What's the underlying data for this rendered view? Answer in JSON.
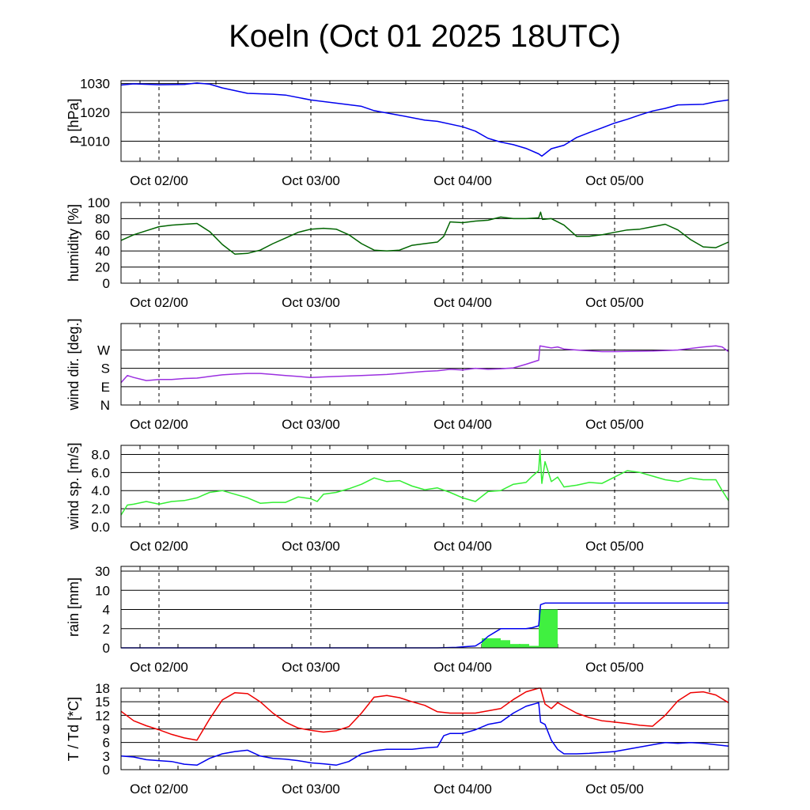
{
  "title": "Koeln (Oct 01 2025 18UTC)",
  "x_axis": {
    "unit": "hours since Oct 01 18UTC",
    "range": [
      0,
      96
    ],
    "ticks": [
      {
        "t": 6,
        "label": "Oct 02/00"
      },
      {
        "t": 30,
        "label": "Oct 03/00"
      },
      {
        "t": 54,
        "label": "Oct 04/00"
      },
      {
        "t": 78,
        "label": "Oct 05/00"
      }
    ]
  },
  "colors": {
    "pressure": "#0000ee",
    "humidity": "#006400",
    "wind_dir": "#9b30e0",
    "wind_speed": "#33ee33",
    "rain_accum": "#0000ee",
    "rain_bars": "#40f040",
    "temperature": "#ee0000",
    "dewpoint": "#0000ee"
  },
  "chart_data": [
    {
      "type": "line",
      "id": "pressure",
      "ylabel": "p [hPa]",
      "ylim": [
        1003,
        1031
      ],
      "yticks": [
        1010,
        1020,
        1030
      ],
      "ytick_labels": [
        "1010",
        "1020",
        "1030"
      ],
      "series": [
        {
          "name": "pressure",
          "x": [
            0,
            2,
            6,
            10,
            12,
            14,
            16,
            20,
            24,
            26,
            30,
            34,
            38,
            40,
            44,
            48,
            50,
            54,
            56,
            58,
            60,
            62,
            64,
            66,
            66.5,
            68,
            70,
            72,
            74,
            76,
            78,
            80,
            82,
            84,
            86,
            88,
            90,
            92,
            94,
            96
          ],
          "values": [
            1029.5,
            1029.9,
            1029.6,
            1029.7,
            1030.2,
            1029.8,
            1028.5,
            1026.6,
            1026.3,
            1026.0,
            1024.3,
            1023.2,
            1022.1,
            1020.6,
            1019.0,
            1017.3,
            1016.9,
            1015.0,
            1013.5,
            1011.0,
            1009.7,
            1008.8,
            1007.5,
            1005.6,
            1004.8,
            1007.4,
            1008.6,
            1011.3,
            1013.0,
            1014.6,
            1016.3,
            1017.6,
            1019.1,
            1020.5,
            1021.4,
            1022.6,
            1022.7,
            1022.8,
            1023.7,
            1024.3
          ]
        }
      ]
    },
    {
      "type": "line",
      "id": "humidity",
      "ylabel": "humidity [%]",
      "ylim": [
        0,
        100
      ],
      "yticks": [
        0,
        20,
        40,
        60,
        80,
        100
      ],
      "ytick_labels": [
        "0",
        "20",
        "40",
        "60",
        "80",
        "100"
      ],
      "series": [
        {
          "name": "relative humidity",
          "x": [
            0,
            2,
            4,
            6,
            8,
            10,
            12,
            14,
            16,
            18,
            20,
            22,
            24,
            26,
            28,
            30,
            32,
            34,
            36,
            38,
            40,
            42,
            44,
            46,
            48,
            50,
            51,
            52,
            54,
            56,
            58,
            60,
            62,
            64,
            66,
            66.3,
            66.6,
            68,
            70,
            72,
            74,
            76,
            78,
            80,
            82,
            84,
            86,
            88,
            90,
            92,
            94,
            96
          ],
          "values": [
            53,
            60,
            65,
            70,
            72,
            73,
            74,
            64,
            48,
            36,
            37,
            41,
            49,
            56,
            63,
            67,
            68,
            67,
            60,
            49,
            41,
            40,
            41,
            47,
            49,
            51,
            58,
            76,
            75,
            77,
            78,
            82,
            80,
            80,
            81,
            88,
            79,
            80,
            72,
            58,
            58,
            60,
            63,
            66,
            67,
            70,
            73,
            66,
            54,
            45,
            44,
            51
          ]
        }
      ]
    },
    {
      "type": "line",
      "id": "wind_direction",
      "ylabel": "wind dir. [deg.]",
      "ylim": [
        0,
        400
      ],
      "yticks": [
        0,
        90,
        180,
        270
      ],
      "ytick_labels": [
        "N",
        "E",
        "S",
        "W"
      ],
      "series": [
        {
          "name": "wind direction",
          "x": [
            0,
            1,
            2,
            4,
            6,
            8,
            10,
            12,
            14,
            16,
            18,
            20,
            22,
            24,
            26,
            28,
            30,
            32,
            34,
            38,
            42,
            44,
            46,
            48,
            50,
            52,
            54,
            56,
            58,
            60,
            62,
            64,
            66,
            66.2,
            68,
            69,
            70,
            72,
            76,
            78,
            80,
            84,
            88,
            92,
            94,
            95,
            96
          ],
          "values": [
            110,
            145,
            135,
            120,
            125,
            125,
            130,
            132,
            140,
            148,
            152,
            155,
            155,
            150,
            145,
            140,
            135,
            138,
            140,
            145,
            150,
            155,
            160,
            165,
            168,
            175,
            172,
            180,
            175,
            178,
            182,
            200,
            220,
            290,
            280,
            285,
            275,
            270,
            262,
            262,
            263,
            265,
            270,
            285,
            290,
            285,
            262
          ]
        }
      ]
    },
    {
      "type": "line",
      "id": "wind_speed",
      "ylabel": "wind sp. [m/s]",
      "ylim": [
        0,
        9
      ],
      "yticks": [
        0,
        2,
        4,
        6,
        8
      ],
      "ytick_labels": [
        "0.0",
        "2.0",
        "4.0",
        "6.0",
        "8.0"
      ],
      "series": [
        {
          "name": "wind speed",
          "x": [
            0,
            1,
            2,
            4,
            6,
            8,
            10,
            12,
            14,
            16,
            18,
            20,
            22,
            24,
            26,
            28,
            30,
            31,
            32,
            34,
            36,
            38,
            40,
            42,
            44,
            46,
            48,
            50,
            52,
            54,
            56,
            58,
            60,
            62,
            64,
            65,
            66,
            66.2,
            66.5,
            67,
            68,
            69,
            70,
            72,
            74,
            76,
            78,
            80,
            82,
            84,
            86,
            88,
            90,
            92,
            94,
            95,
            96
          ],
          "values": [
            1.3,
            2.4,
            2.5,
            2.8,
            2.5,
            2.8,
            2.9,
            3.2,
            3.8,
            4.0,
            3.6,
            3.2,
            2.6,
            2.7,
            2.7,
            3.3,
            3.1,
            2.8,
            3.6,
            3.8,
            4.2,
            4.7,
            5.4,
            5.0,
            5.1,
            4.5,
            4.1,
            4.3,
            3.8,
            3.2,
            2.8,
            3.9,
            4.0,
            4.7,
            4.9,
            5.6,
            6.2,
            8.5,
            4.8,
            7.2,
            5.0,
            5.5,
            4.4,
            4.6,
            4.9,
            4.8,
            5.5,
            6.2,
            6.0,
            5.6,
            5.2,
            5.0,
            5.4,
            5.2,
            5.2,
            4.0,
            2.9
          ]
        }
      ]
    },
    {
      "type": "bar",
      "id": "rain",
      "ylabel": "rain [mm]",
      "ylim": [
        0,
        30
      ],
      "yscale": "nonlinear (tick positions equally spaced)",
      "yticks": [
        0,
        2,
        4,
        10,
        30
      ],
      "ytick_labels": [
        "0",
        "2",
        "4",
        "10",
        "30"
      ],
      "bars": {
        "name": "rain per 3h",
        "x_start": [
          57,
          58.5,
          61.5,
          63,
          63.5,
          66,
          69
        ],
        "values": [
          1.0,
          0.8,
          0.4,
          0.2,
          0.2,
          4.0,
          0.0
        ]
      },
      "series": [
        {
          "name": "accumulated rain",
          "x": [
            0,
            45,
            50,
            53,
            54,
            56,
            57,
            58,
            60,
            62,
            64,
            65,
            66,
            66.3,
            67,
            96
          ],
          "values": [
            0,
            0,
            0,
            0.05,
            0.1,
            0.2,
            0.6,
            1.2,
            2.0,
            2.0,
            2.0,
            2.1,
            2.3,
            5.5,
            6.0,
            6.0
          ]
        }
      ]
    },
    {
      "type": "line",
      "id": "temperature",
      "ylabel": "T / Td [*C]",
      "ylim": [
        0,
        18
      ],
      "yticks": [
        0,
        3,
        6,
        9,
        12,
        15,
        18
      ],
      "ytick_labels": [
        "0",
        "3",
        "6",
        "9",
        "12",
        "15",
        "18"
      ],
      "series": [
        {
          "name": "temperature",
          "x": [
            0,
            2,
            4,
            6,
            8,
            10,
            12,
            14,
            16,
            18,
            20,
            22,
            24,
            26,
            28,
            30,
            32,
            34,
            36,
            38,
            40,
            42,
            44,
            46,
            48,
            50,
            52,
            54,
            56,
            58,
            60,
            62,
            64,
            66,
            66.3,
            67,
            68,
            69,
            70,
            72,
            74,
            76,
            78,
            80,
            82,
            84,
            86,
            88,
            90,
            92,
            94,
            96
          ],
          "values": [
            12.9,
            10.8,
            9.7,
            8.8,
            7.8,
            7.0,
            6.5,
            11.2,
            15.4,
            17.0,
            16.8,
            15.0,
            12.5,
            10.5,
            9.2,
            8.7,
            8.3,
            8.6,
            9.5,
            12.5,
            16.0,
            16.4,
            15.9,
            15.0,
            14.2,
            12.8,
            12.5,
            12.5,
            12.5,
            13.0,
            13.5,
            15.5,
            17.2,
            18.0,
            18.0,
            14.5,
            13.5,
            14.8,
            14.0,
            12.5,
            11.5,
            10.8,
            10.5,
            10.2,
            9.8,
            9.6,
            12.0,
            15.2,
            17.0,
            17.2,
            16.5,
            14.8
          ]
        },
        {
          "name": "dewpoint",
          "x": [
            0,
            2,
            4,
            6,
            8,
            10,
            12,
            14,
            16,
            18,
            20,
            22,
            24,
            26,
            28,
            30,
            32,
            34,
            36,
            38,
            40,
            42,
            44,
            46,
            48,
            50,
            51,
            52,
            54,
            56,
            58,
            60,
            62,
            64,
            66,
            66.3,
            67,
            68,
            69,
            70,
            72,
            74,
            76,
            78,
            80,
            82,
            84,
            86,
            88,
            90,
            92,
            94,
            96
          ],
          "values": [
            3.0,
            2.8,
            2.2,
            2.0,
            1.8,
            1.2,
            1.0,
            2.5,
            3.5,
            4.0,
            4.3,
            3.0,
            2.5,
            2.3,
            2.0,
            1.5,
            1.3,
            1.0,
            1.8,
            3.5,
            4.2,
            4.5,
            4.5,
            4.5,
            4.8,
            5.0,
            7.5,
            8.0,
            8.0,
            8.8,
            10.0,
            10.5,
            12.5,
            14.0,
            14.8,
            10.5,
            10.0,
            6.5,
            4.5,
            3.5,
            3.5,
            3.6,
            3.8,
            4.0,
            4.5,
            5.0,
            5.5,
            6.0,
            5.8,
            6.0,
            5.8,
            5.5,
            5.2
          ]
        }
      ]
    }
  ]
}
